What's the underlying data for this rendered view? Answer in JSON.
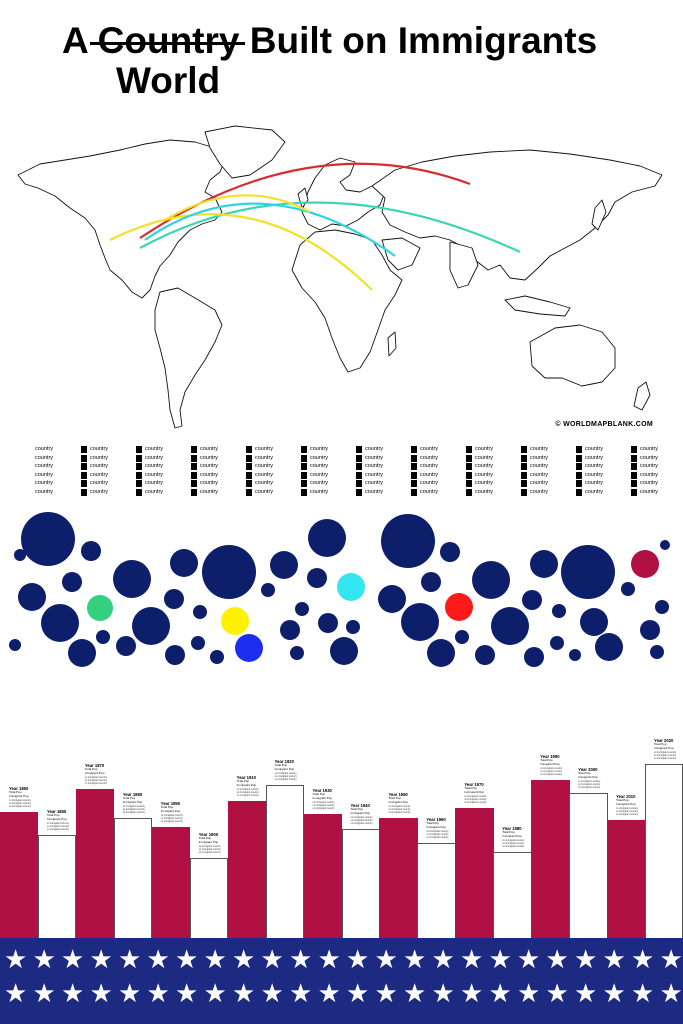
{
  "title": {
    "prefix": "A",
    "struck_word": "Country",
    "rest": "Built on Immigrants",
    "replacement": "World"
  },
  "map": {
    "credit": "© WORLDMAPBLANK.COM",
    "routes": [
      {
        "color": "#d62e2e"
      },
      {
        "color": "#3dd6b4"
      },
      {
        "color": "#f2e12a"
      },
      {
        "color": "#2fd3e6"
      }
    ]
  },
  "legend": {
    "label": "country",
    "columns": 12,
    "rows": 6
  },
  "bubbles": {
    "default_color": "#0d1e6b",
    "items": [
      {
        "color": "#0d1e6b"
      },
      {
        "color": "#0d1e6b"
      },
      {
        "color": "#0d1e6b"
      },
      {
        "color": "#0d1e6b"
      },
      {
        "color": "#0d1e6b"
      },
      {
        "color": "#33d07f"
      },
      {
        "color": "#0d1e6b"
      },
      {
        "color": "#0d1e6b"
      },
      {
        "color": "#0d1e6b"
      },
      {
        "color": "#0d1e6b"
      },
      {
        "color": "#0d1e6b"
      },
      {
        "color": "#0d1e6b"
      },
      {
        "color": "#0d1e6b"
      },
      {
        "color": "#0d1e6b"
      },
      {
        "color": "#0d1e6b"
      },
      {
        "color": "#0d1e6b"
      },
      {
        "color": "#fff200"
      },
      {
        "color": "#0d1e6b"
      },
      {
        "color": "#0d1e6b"
      },
      {
        "color": "#1e2ef0"
      },
      {
        "color": "#0d1e6b"
      },
      {
        "color": "#0d1e6b"
      },
      {
        "color": "#0d1e6b"
      },
      {
        "color": "#0d1e6b"
      },
      {
        "color": "#0d1e6b"
      },
      {
        "color": "#0d1e6b"
      },
      {
        "color": "#0d1e6b"
      },
      {
        "color": "#0d1e6b"
      },
      {
        "color": "#33e6f2"
      },
      {
        "color": "#0d1e6b"
      },
      {
        "color": "#0d1e6b"
      },
      {
        "color": "#0d1e6b"
      },
      {
        "color": "#0d1e6b"
      },
      {
        "color": "#0d1e6b"
      },
      {
        "color": "#0d1e6b"
      },
      {
        "color": "#0d1e6b"
      },
      {
        "color": "#ff1a1a"
      },
      {
        "color": "#0d1e6b"
      },
      {
        "color": "#0d1e6b"
      },
      {
        "color": "#0d1e6b"
      },
      {
        "color": "#0d1e6b"
      },
      {
        "color": "#0d1e6b"
      },
      {
        "color": "#0d1e6b"
      },
      {
        "color": "#0d1e6b"
      },
      {
        "color": "#0d1e6b"
      },
      {
        "color": "#0d1e6b"
      },
      {
        "color": "#0d1e6b"
      },
      {
        "color": "#0d1e6b"
      },
      {
        "color": "#0d1e6b"
      },
      {
        "color": "#0d1e6b"
      },
      {
        "color": "#b01042"
      },
      {
        "color": "#0d1e6b"
      },
      {
        "color": "#0d1e6b"
      },
      {
        "color": "#0d1e6b"
      },
      {
        "color": "#0d1e6b"
      },
      {
        "color": "#0d1e6b"
      },
      {
        "color": "#0d1e6b"
      },
      {
        "color": "#0d1e6b"
      },
      {
        "color": "#0d1e6b"
      }
    ]
  },
  "bars": {
    "colors": {
      "red": "#b01042",
      "white": "#ffffff"
    },
    "stat_labels": [
      "Total Pop",
      "Immigrant Pop"
    ],
    "footnote": "xx immigrant country",
    "items": [
      {
        "year": "Year 1850",
        "style": "red",
        "fraction": 0.61
      },
      {
        "year": "Year 1860",
        "style": "white",
        "fraction": 0.5
      },
      {
        "year": "Year 1870",
        "style": "red",
        "fraction": 0.72
      },
      {
        "year": "Year 1880",
        "style": "white",
        "fraction": 0.58
      },
      {
        "year": "Year 1890",
        "style": "red",
        "fraction": 0.54
      },
      {
        "year": "Year 1900",
        "style": "white",
        "fraction": 0.39
      },
      {
        "year": "Year 1910",
        "style": "red",
        "fraction": 0.66
      },
      {
        "year": "Year 1920",
        "style": "white",
        "fraction": 0.74
      },
      {
        "year": "Year 1930",
        "style": "red",
        "fraction": 0.6
      },
      {
        "year": "Year 1940",
        "style": "white",
        "fraction": 0.53
      },
      {
        "year": "Year 1950",
        "style": "red",
        "fraction": 0.58
      },
      {
        "year": "Year 1960",
        "style": "white",
        "fraction": 0.46
      },
      {
        "year": "Year 1970",
        "style": "red",
        "fraction": 0.63
      },
      {
        "year": "Year 1980",
        "style": "white",
        "fraction": 0.42
      },
      {
        "year": "Year 1990",
        "style": "red",
        "fraction": 0.76
      },
      {
        "year": "Year 2000",
        "style": "white",
        "fraction": 0.7
      },
      {
        "year": "Year 2010",
        "style": "red",
        "fraction": 0.57
      },
      {
        "year": "Year 2020",
        "style": "white",
        "fraction": 0.84
      }
    ]
  },
  "flag": {
    "color": "#1d2a82",
    "star": "★"
  }
}
